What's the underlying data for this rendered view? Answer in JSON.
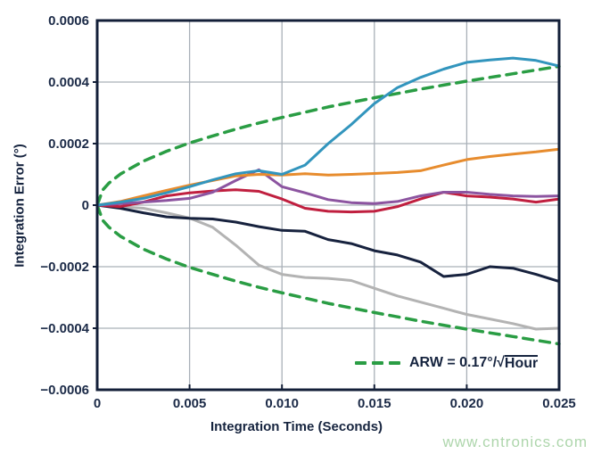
{
  "figure": {
    "background": "#ffffff",
    "y_axis_title": "Integration Error (°)",
    "x_axis_title": "Integration Time (Seconds)",
    "watermark": "www.cntronics.com"
  },
  "legend": {
    "label_prefix": "ARW = 0.17°/",
    "sqrt_sign": "√",
    "sqrt_arg": "Hour",
    "swatch_color": "#2a9d44",
    "swatch_style": "dashed"
  },
  "colors": {
    "frame": "#131f38",
    "grid": "#a9b0b8",
    "tick_text": "#1b2a47",
    "watermark": "#aed6ac",
    "envelope_green": "#2a9d44",
    "cyan": "#3295bd",
    "orange": "#e78c2e",
    "purple": "#8c54a0",
    "red": "#c01f3f",
    "navy": "#17223e",
    "gray": "#b3b3b3"
  },
  "chart_data": {
    "type": "line",
    "title": "",
    "xlabel": "Integration Time (Seconds)",
    "ylabel": "Integration Error (°)",
    "xlim": [
      0,
      0.025
    ],
    "ylim": [
      -0.0006,
      0.0006
    ],
    "grid": true,
    "legend_position": "lower right",
    "legend_entries": [
      {
        "label": "ARW = 0.17°/√Hour",
        "style": "dashed",
        "color": "#2a9d44"
      }
    ],
    "x_ticks": [
      {
        "value": 0,
        "label": "0"
      },
      {
        "value": 0.005,
        "label": "0.005"
      },
      {
        "value": 0.01,
        "label": "0.010"
      },
      {
        "value": 0.015,
        "label": "0.015"
      },
      {
        "value": 0.02,
        "label": "0.020"
      },
      {
        "value": 0.025,
        "label": "0.025"
      }
    ],
    "y_ticks": [
      {
        "value": 0.0006,
        "label": "0.0006"
      },
      {
        "value": 0.0004,
        "label": "0.0004"
      },
      {
        "value": 0.0002,
        "label": "0.0002"
      },
      {
        "value": 0,
        "label": "0"
      },
      {
        "value": -0.0002,
        "label": "−0.0002"
      },
      {
        "value": -0.0004,
        "label": "−0.0004"
      },
      {
        "value": -0.0006,
        "label": "−0.0006"
      }
    ],
    "x_common": [
      0,
      0.00125,
      0.0025,
      0.00375,
      0.005,
      0.00625,
      0.0075,
      0.00875,
      0.01,
      0.01125,
      0.0125,
      0.01375,
      0.015,
      0.01625,
      0.0175,
      0.01875,
      0.02,
      0.02125,
      0.0225,
      0.02375,
      0.025
    ],
    "envelope_x": [
      0,
      0.0003,
      0.000625,
      0.00125,
      0.0025,
      0.00375,
      0.005,
      0.00625,
      0.0075,
      0.00875,
      0.01,
      0.01125,
      0.0125,
      0.01375,
      0.015,
      0.01625,
      0.0175,
      0.01875,
      0.02,
      0.02125,
      0.0225,
      0.02375,
      0.025
    ],
    "series": [
      {
        "name": "arw-envelope-upper",
        "color": "#2a9d44",
        "dashed": true,
        "width": 3.5,
        "use_envelope_x": true,
        "values": [
          0,
          4.94e-05,
          7.13e-05,
          0.000101,
          0.000143,
          0.000175,
          0.000202,
          0.000225,
          0.000247,
          0.000267,
          0.000285,
          0.000302,
          0.000319,
          0.000334,
          0.000349,
          0.000363,
          0.000377,
          0.00039,
          0.000403,
          0.000415,
          0.000427,
          0.000439,
          0.000451
        ]
      },
      {
        "name": "arw-envelope-lower",
        "color": "#2a9d44",
        "dashed": true,
        "width": 3.5,
        "use_envelope_x": true,
        "values": [
          0,
          -4.94e-05,
          -7.13e-05,
          -0.000101,
          -0.000143,
          -0.000175,
          -0.000202,
          -0.000225,
          -0.000247,
          -0.000267,
          -0.000285,
          -0.000302,
          -0.000319,
          -0.000334,
          -0.000349,
          -0.000363,
          -0.000377,
          -0.00039,
          -0.000403,
          -0.000415,
          -0.000427,
          -0.000439,
          -0.000451
        ]
      },
      {
        "name": "gray",
        "color": "#b3b3b3",
        "dashed": false,
        "width": 3,
        "values": [
          0,
          -5e-06,
          -1e-05,
          -2.5e-05,
          -4.2e-05,
          -7.2e-05,
          -0.00013,
          -0.000195,
          -0.000225,
          -0.000235,
          -0.000238,
          -0.000245,
          -0.00027,
          -0.000295,
          -0.000315,
          -0.000335,
          -0.000355,
          -0.00037,
          -0.000385,
          -0.000403,
          -0.0004
        ]
      },
      {
        "name": "navy",
        "color": "#17223e",
        "dashed": false,
        "width": 3,
        "values": [
          0,
          -1e-05,
          -2.5e-05,
          -3.8e-05,
          -4.3e-05,
          -4.5e-05,
          -5.5e-05,
          -7e-05,
          -8.2e-05,
          -8.5e-05,
          -0.000112,
          -0.000125,
          -0.000148,
          -0.000162,
          -0.000185,
          -0.000232,
          -0.000225,
          -0.0002,
          -0.000205,
          -0.000225,
          -0.000248
        ]
      },
      {
        "name": "red",
        "color": "#c01f3f",
        "dashed": false,
        "width": 3,
        "values": [
          0,
          -5e-06,
          1e-05,
          3e-05,
          4e-05,
          4.6e-05,
          5e-05,
          4.5e-05,
          2e-05,
          -1e-05,
          -2e-05,
          -2.2e-05,
          -2e-05,
          -5e-06,
          2e-05,
          4.2e-05,
          3e-05,
          2.6e-05,
          2e-05,
          1e-05,
          2e-05
        ]
      },
      {
        "name": "purple",
        "color": "#8c54a0",
        "dashed": false,
        "width": 3,
        "values": [
          0,
          5e-06,
          1e-05,
          1.5e-05,
          2.2e-05,
          4.2e-05,
          8e-05,
          0.000115,
          6e-05,
          4e-05,
          1.8e-05,
          8e-06,
          5e-06,
          1.2e-05,
          3e-05,
          4.2e-05,
          4.2e-05,
          3.5e-05,
          3e-05,
          2.8e-05,
          3e-05
        ]
      },
      {
        "name": "orange",
        "color": "#e78c2e",
        "dashed": false,
        "width": 3,
        "values": [
          0,
          1.2e-05,
          3e-05,
          4.8e-05,
          6.5e-05,
          8e-05,
          9.5e-05,
          0.0001,
          9.8e-05,
          0.000102,
          9.8e-05,
          0.0001,
          0.000103,
          0.000106,
          0.000112,
          0.00013,
          0.000148,
          0.000158,
          0.000166,
          0.000173,
          0.000182
        ]
      },
      {
        "name": "cyan",
        "color": "#3295bd",
        "dashed": false,
        "width": 3,
        "values": [
          0,
          1e-05,
          2.2e-05,
          4e-05,
          6e-05,
          8.2e-05,
          0.000102,
          0.000112,
          0.0001,
          0.00013,
          0.0002,
          0.000262,
          0.00033,
          0.000382,
          0.000415,
          0.000442,
          0.000464,
          0.000472,
          0.000478,
          0.00047,
          0.000452
        ]
      }
    ]
  }
}
